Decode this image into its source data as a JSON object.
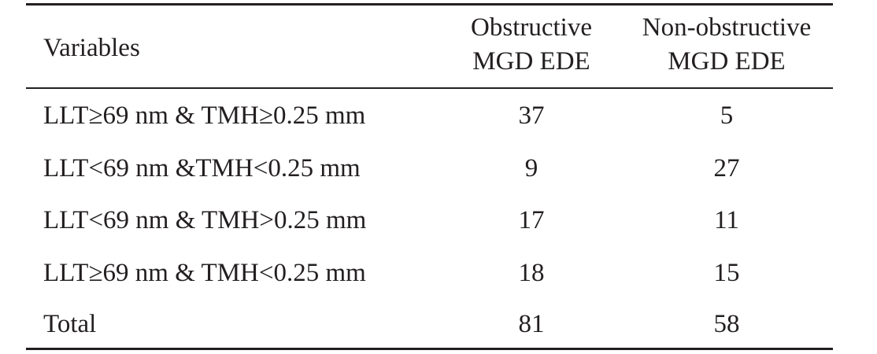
{
  "table": {
    "header": {
      "variables": "Variables",
      "col1": [
        "Obstructive",
        "MGD EDE"
      ],
      "col2": [
        "Non-obstructive",
        "MGD EDE"
      ]
    },
    "rows": [
      {
        "label": "LLT≥69 nm & TMH≥0.25 mm",
        "obstructive": "37",
        "non_obstructive": "5"
      },
      {
        "label": "LLT<69 nm &TMH<0.25 mm",
        "obstructive": "9",
        "non_obstructive": "27"
      },
      {
        "label": "LLT<69 nm & TMH>0.25 mm",
        "obstructive": "17",
        "non_obstructive": "11"
      },
      {
        "label": "LLT≥69 nm & TMH<0.25 mm",
        "obstructive": "18",
        "non_obstructive": "15"
      },
      {
        "label": "Total",
        "obstructive": "81",
        "non_obstructive": "58"
      }
    ]
  }
}
